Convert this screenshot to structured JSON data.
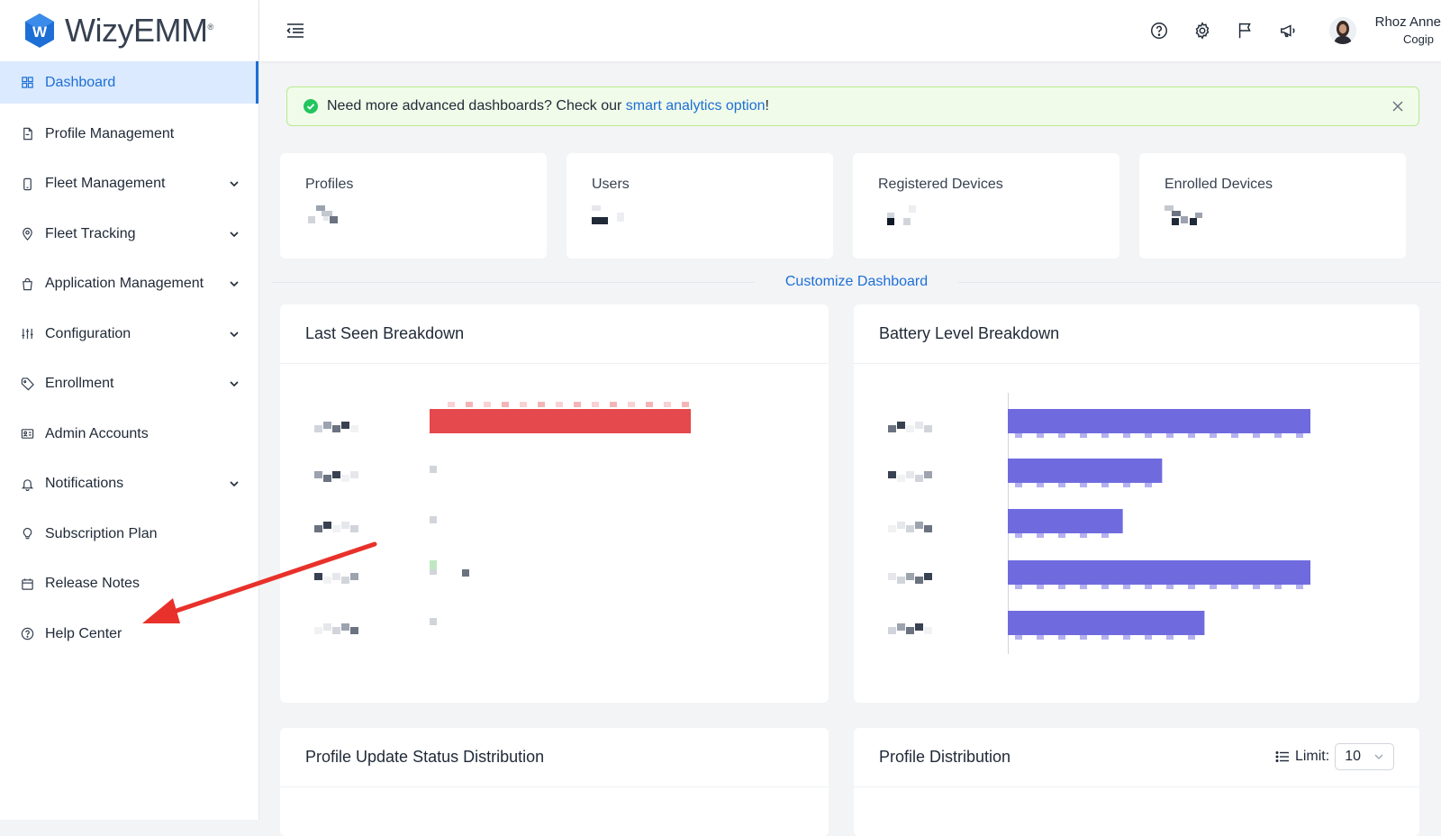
{
  "brand": {
    "name": "WizyEMM",
    "mark": "®",
    "logo_letter": "W"
  },
  "sidebar": {
    "items": [
      {
        "label": "Dashboard",
        "icon": "grid-icon",
        "active": true,
        "expandable": false
      },
      {
        "label": "Profile Management",
        "icon": "document-icon",
        "active": false,
        "expandable": false
      },
      {
        "label": "Fleet Management",
        "icon": "phone-icon",
        "active": false,
        "expandable": true
      },
      {
        "label": "Fleet Tracking",
        "icon": "map-pin-icon",
        "active": false,
        "expandable": true
      },
      {
        "label": "Application Management",
        "icon": "shopping-bag-icon",
        "active": false,
        "expandable": true
      },
      {
        "label": "Configuration",
        "icon": "sliders-icon",
        "active": false,
        "expandable": true
      },
      {
        "label": "Enrollment",
        "icon": "tag-icon",
        "active": false,
        "expandable": true
      },
      {
        "label": "Admin Accounts",
        "icon": "id-card-icon",
        "active": false,
        "expandable": false
      },
      {
        "label": "Notifications",
        "icon": "bell-icon",
        "active": false,
        "expandable": true
      },
      {
        "label": "Subscription Plan",
        "icon": "bulb-icon",
        "active": false,
        "expandable": false
      },
      {
        "label": "Release Notes",
        "icon": "calendar-icon",
        "active": false,
        "expandable": false
      },
      {
        "label": "Help Center",
        "icon": "help-circle-icon",
        "active": false,
        "expandable": false
      }
    ]
  },
  "header": {
    "user": {
      "name": "Rhoz Anne",
      "org": "Cogip"
    },
    "icons": [
      "help-icon",
      "settings-icon",
      "flag-icon",
      "megaphone-icon"
    ]
  },
  "alert": {
    "prefix": "Need more advanced dashboards? Check our ",
    "link": "smart analytics option",
    "suffix": "!"
  },
  "stats": [
    {
      "title": "Profiles"
    },
    {
      "title": "Users"
    },
    {
      "title": "Registered Devices"
    },
    {
      "title": "Enrolled Devices"
    }
  ],
  "customize_label": "Customize Dashboard",
  "cards": {
    "last_seen": {
      "title": "Last Seen Breakdown"
    },
    "battery": {
      "title": "Battery Level Breakdown"
    },
    "profile_update": {
      "title": "Profile Update Status Distribution"
    },
    "profile_dist": {
      "title": "Profile Distribution",
      "limit_label": "Limit:",
      "limit_value": "10"
    }
  },
  "colors": {
    "accent": "#1d6fd6",
    "last_seen_bar": "#e5484d",
    "battery_bar": "#6f6bdf",
    "annotation_arrow": "#e8312a"
  },
  "chart_data": [
    {
      "type": "bar",
      "orientation": "horizontal",
      "values": [
        1,
        0,
        0,
        0,
        0
      ],
      "note": "obscured"
    },
    {
      "type": "bar",
      "orientation": "horizontal",
      "values": [
        1.0,
        0.51,
        0.38,
        1.0,
        0.65
      ],
      "note": "obscured"
    }
  ]
}
